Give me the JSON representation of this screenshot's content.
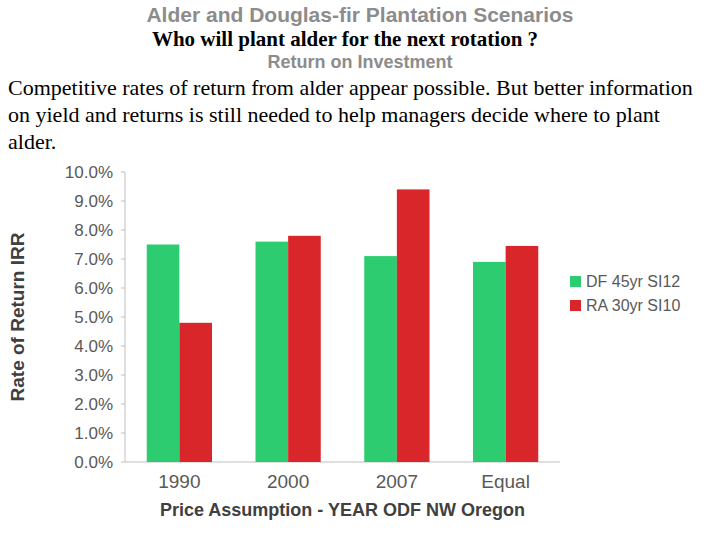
{
  "chart_data": {
    "type": "bar",
    "title": "Alder and Douglas-fir Plantation Scenarios",
    "subtitle": "Return on Investment",
    "annotations": [
      "Who will plant alder for the next rotation ?",
      "Competitive rates of return from alder appear possible. But better information on yield and returns is still needed to help managers decide where to plant alder."
    ],
    "x_label": "Price Assumption - YEAR ODF NW Oregon",
    "y_label": "Rate of Return IRR",
    "categories": [
      "1990",
      "2000",
      "2007",
      "Equal"
    ],
    "series": [
      {
        "name": "DF 45yr SI12",
        "color": "#2ecc71",
        "values": [
          7.5,
          7.6,
          7.1,
          6.9
        ]
      },
      {
        "name": "RA 30yr SI10",
        "color": "#d9262b",
        "values": [
          4.8,
          7.8,
          9.4,
          7.45
        ]
      }
    ],
    "ylim": [
      0,
      10
    ],
    "yticks": [
      {
        "value": 0,
        "label": "0.0%"
      },
      {
        "value": 1,
        "label": "1.0%"
      },
      {
        "value": 2,
        "label": "2.0%"
      },
      {
        "value": 3,
        "label": "3.0%"
      },
      {
        "value": 4,
        "label": "4.0%"
      },
      {
        "value": 5,
        "label": "5.0%"
      },
      {
        "value": 6,
        "label": "6.0%"
      },
      {
        "value": 7,
        "label": "7.0%"
      },
      {
        "value": 8,
        "label": "8.0%"
      },
      {
        "value": 9,
        "label": "9.0%"
      },
      {
        "value": 10,
        "label": "10.0%"
      }
    ],
    "grid": false,
    "legend": "right"
  }
}
